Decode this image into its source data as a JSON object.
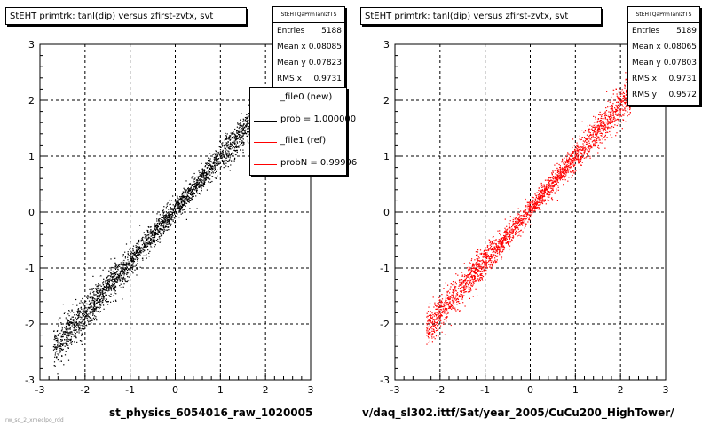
{
  "colors": {
    "ref": "#ff0000",
    "new": "#000000"
  },
  "chart_data": [
    {
      "type": "scatter",
      "title": "StEHT primtrk: tanl(dip) versus zfirst-zvtx, svt",
      "xlabel": "st_physics_6054016_raw_1020005",
      "xlim": [
        -3,
        3
      ],
      "ylim": [
        -3,
        3
      ],
      "xticks": [
        "-3",
        "-2",
        "-1",
        "0",
        "1",
        "2",
        "3"
      ],
      "yticks": [
        "-3",
        "-2",
        "-1",
        "0",
        "1",
        "2",
        "3"
      ],
      "grid": true,
      "color": "#000000",
      "trend": {
        "slope": 0.93,
        "intercept": 0.05,
        "x_range": [
          -2.7,
          1.75
        ],
        "spread": 0.09
      },
      "stats": {
        "header": "StEHTQaPrmTanlzfTS",
        "rows": [
          {
            "label": "Entries",
            "value": "5188"
          },
          {
            "label": "Mean x",
            "value": "0.08085"
          },
          {
            "label": "Mean y",
            "value": "0.07823"
          },
          {
            "label": "RMS x",
            "value": "0.9731"
          }
        ]
      },
      "legend": [
        {
          "label": "_file0 (new)",
          "color": "#000000"
        },
        {
          "label": "prob = 1.000000",
          "color": "#000000"
        },
        {
          "label": "_file1 (ref)",
          "color": "#ff0000"
        },
        {
          "label": "probN = 0.99996",
          "color": "#ff0000"
        }
      ],
      "footer": "rw_sq_2_xmeclpo_rdd"
    },
    {
      "type": "scatter",
      "title": "StEHT primtrk: tanl(dip) versus zfirst-zvtx, svt",
      "xlabel": "v/daq_sl302.ittf/Sat/year_2005/CuCu200_HighTower/",
      "xlim": [
        -3,
        3
      ],
      "ylim": [
        -3,
        3
      ],
      "xticks": [
        "-3",
        "-2",
        "-1",
        "0",
        "1",
        "2",
        "3"
      ],
      "yticks": [
        "-3",
        "-2",
        "-1",
        "0",
        "1",
        "2",
        "3"
      ],
      "grid": true,
      "color": "#ff0000",
      "trend": {
        "slope": 0.93,
        "intercept": 0.05,
        "x_range": [
          -2.3,
          2.25
        ],
        "spread": 0.09
      },
      "stats": {
        "header": "StEHTQaPrmTanlzfTS",
        "rows": [
          {
            "label": "Entries",
            "value": "5189"
          },
          {
            "label": "Mean x",
            "value": "0.08065"
          },
          {
            "label": "Mean y",
            "value": "0.07803"
          },
          {
            "label": "RMS x",
            "value": "0.9731"
          },
          {
            "label": "RMS y",
            "value": "0.9572"
          }
        ]
      }
    }
  ]
}
